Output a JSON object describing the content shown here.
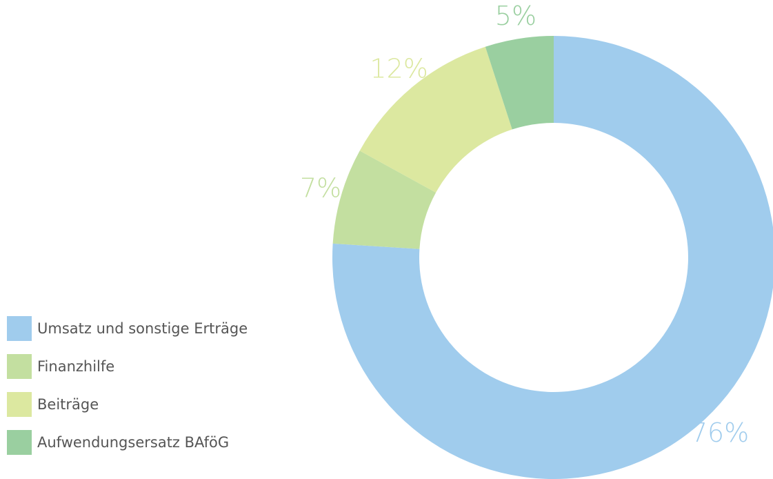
{
  "chart_data": {
    "type": "pie",
    "categories": [
      "Umsatz und sonstige Erträge",
      "Finanzhilfe",
      "Beiträge",
      "Aufwendungsersatz BAföG"
    ],
    "values": [
      76,
      7,
      12,
      5
    ],
    "value_labels": [
      "76%",
      "7%",
      "12%",
      "5%"
    ],
    "colors": [
      "#a0cced",
      "#c3dfa0",
      "#dce8a0",
      "#9acfa0"
    ],
    "donut": true
  }
}
